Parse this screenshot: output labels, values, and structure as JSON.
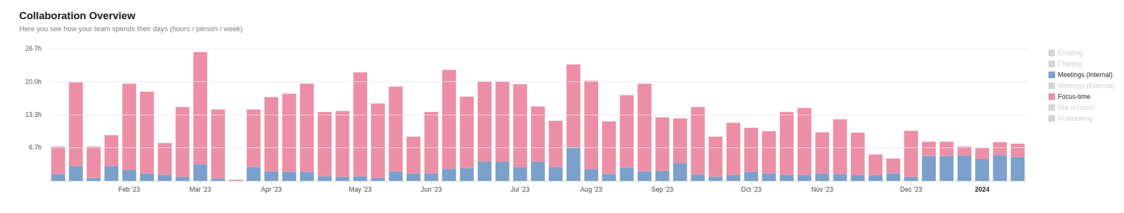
{
  "chart_data": {
    "type": "bar",
    "title": "Collaboration Overview",
    "subtitle": "Here you see how your team spends their days (hours / person / week)",
    "stacked": true,
    "grid": true,
    "legend": "right",
    "categories": [
      null,
      null,
      null,
      null,
      "Feb '23",
      null,
      null,
      null,
      "Mar '23",
      null,
      null,
      null,
      "Apr '23",
      null,
      null,
      null,
      null,
      "May '23",
      null,
      null,
      null,
      "Jun '23",
      null,
      null,
      null,
      null,
      "Jul '23",
      null,
      null,
      null,
      "Aug '23",
      null,
      null,
      null,
      "Sep '23",
      null,
      null,
      null,
      null,
      "Oct '23",
      null,
      null,
      null,
      "Nov '23",
      null,
      null,
      null,
      null,
      "Dec '23",
      null,
      null,
      null,
      "2024",
      null,
      null
    ],
    "ylim": [
      0,
      26.7
    ],
    "yticks": [
      {
        "value": 6.7,
        "label": "6.7h"
      },
      {
        "value": 13.3,
        "label": "13.3h"
      },
      {
        "value": 20.0,
        "label": "20.0h"
      },
      {
        "value": 26.7,
        "label": "26.7h"
      }
    ],
    "series": [
      {
        "name": "Emailing",
        "color": "#d9d9d9",
        "values": [
          null,
          null,
          null,
          null,
          null,
          null,
          null,
          null,
          null,
          null,
          null,
          null,
          null,
          null,
          null,
          null,
          null,
          null,
          null,
          null,
          null,
          null,
          null,
          null,
          null,
          null,
          null,
          null,
          null,
          null,
          null,
          null,
          null,
          null,
          null,
          null,
          null,
          null,
          null,
          null,
          null,
          null,
          null,
          null,
          null,
          null,
          null,
          null,
          null,
          null,
          null,
          null,
          null,
          null,
          null
        ]
      },
      {
        "name": "Chatting",
        "color": "#e3e3e3",
        "values": [
          null,
          null,
          null,
          null,
          null,
          null,
          null,
          null,
          null,
          null,
          null,
          null,
          null,
          null,
          null,
          null,
          null,
          null,
          null,
          null,
          null,
          null,
          null,
          null,
          null,
          null,
          null,
          null,
          null,
          null,
          null,
          null,
          null,
          null,
          null,
          null,
          null,
          null,
          null,
          null,
          null,
          null,
          null,
          null,
          null,
          null,
          null,
          null,
          null,
          null,
          null,
          null,
          null,
          null,
          null
        ]
      },
      {
        "name": "Meetings (Internal)",
        "color": "#7ba0cc",
        "values": [
          1.4,
          3.0,
          0.6,
          3.0,
          2.2,
          1.5,
          1.2,
          0.8,
          3.3,
          0.5,
          0,
          2.8,
          1.9,
          1.8,
          1.8,
          0.9,
          0.8,
          0.9,
          0.6,
          1.9,
          1.5,
          1.5,
          2.4,
          2.6,
          3.9,
          3.9,
          2.8,
          3.9,
          2.8,
          6.8,
          2.4,
          1.4,
          2.7,
          1.9,
          2.0,
          3.6,
          1.3,
          0.8,
          1.2,
          1.8,
          1.5,
          1.2,
          1.2,
          1.5,
          1.4,
          1.2,
          1.1,
          1.5,
          0.8,
          5.0,
          5.0,
          5.1,
          4.4,
          5.2,
          4.8
        ]
      },
      {
        "name": "Meetings (External)",
        "color": "#dcdcf0",
        "values": [
          null,
          null,
          null,
          null,
          null,
          null,
          null,
          null,
          null,
          null,
          null,
          null,
          null,
          null,
          null,
          null,
          null,
          null,
          null,
          null,
          null,
          null,
          null,
          null,
          null,
          null,
          null,
          null,
          null,
          null,
          null,
          null,
          null,
          null,
          null,
          null,
          null,
          null,
          null,
          null,
          null,
          null,
          null,
          null,
          null,
          null,
          null,
          null,
          null,
          null,
          null,
          null,
          null,
          null,
          null
        ]
      },
      {
        "name": "Focus-time",
        "color": "#ec8fa6",
        "values": [
          5.5,
          16.9,
          6.3,
          6.2,
          17.4,
          16.5,
          6.4,
          14.1,
          22.7,
          13.9,
          0.2,
          11.6,
          15.0,
          15.8,
          17.8,
          13.0,
          13.3,
          21.0,
          15.0,
          17.1,
          7.4,
          12.4,
          20.0,
          14.4,
          16.2,
          16.2,
          16.7,
          11.1,
          9.3,
          16.7,
          17.8,
          10.6,
          14.6,
          17.7,
          10.8,
          9.0,
          13.6,
          8.1,
          10.5,
          8.9,
          8.5,
          12.7,
          13.5,
          8.3,
          11.0,
          8.5,
          4.2,
          3.0,
          9.3,
          2.9,
          2.9,
          1.8,
          2.2,
          2.6,
          2.7
        ]
      },
      {
        "name": "Out of hours",
        "color": "#d0d0d0",
        "values": [
          null,
          null,
          null,
          null,
          null,
          null,
          null,
          null,
          null,
          null,
          null,
          null,
          null,
          null,
          null,
          null,
          null,
          null,
          null,
          null,
          null,
          null,
          null,
          null,
          null,
          null,
          null,
          null,
          null,
          null,
          null,
          null,
          null,
          null,
          null,
          null,
          null,
          null,
          null,
          null,
          null,
          null,
          null,
          null,
          null,
          null,
          null,
          null,
          null,
          null,
          null,
          null,
          null,
          null,
          null
        ]
      },
      {
        "name": "Multitasking",
        "color": "#f3dbe2",
        "values": [
          null,
          null,
          null,
          null,
          null,
          null,
          null,
          null,
          null,
          null,
          null,
          null,
          null,
          null,
          null,
          null,
          null,
          null,
          null,
          null,
          null,
          null,
          null,
          null,
          null,
          null,
          null,
          null,
          null,
          null,
          null,
          null,
          null,
          null,
          null,
          null,
          null,
          null,
          null,
          null,
          null,
          null,
          null,
          null,
          null,
          null,
          null,
          null,
          null,
          null,
          null,
          null,
          null,
          null,
          null
        ]
      }
    ]
  }
}
